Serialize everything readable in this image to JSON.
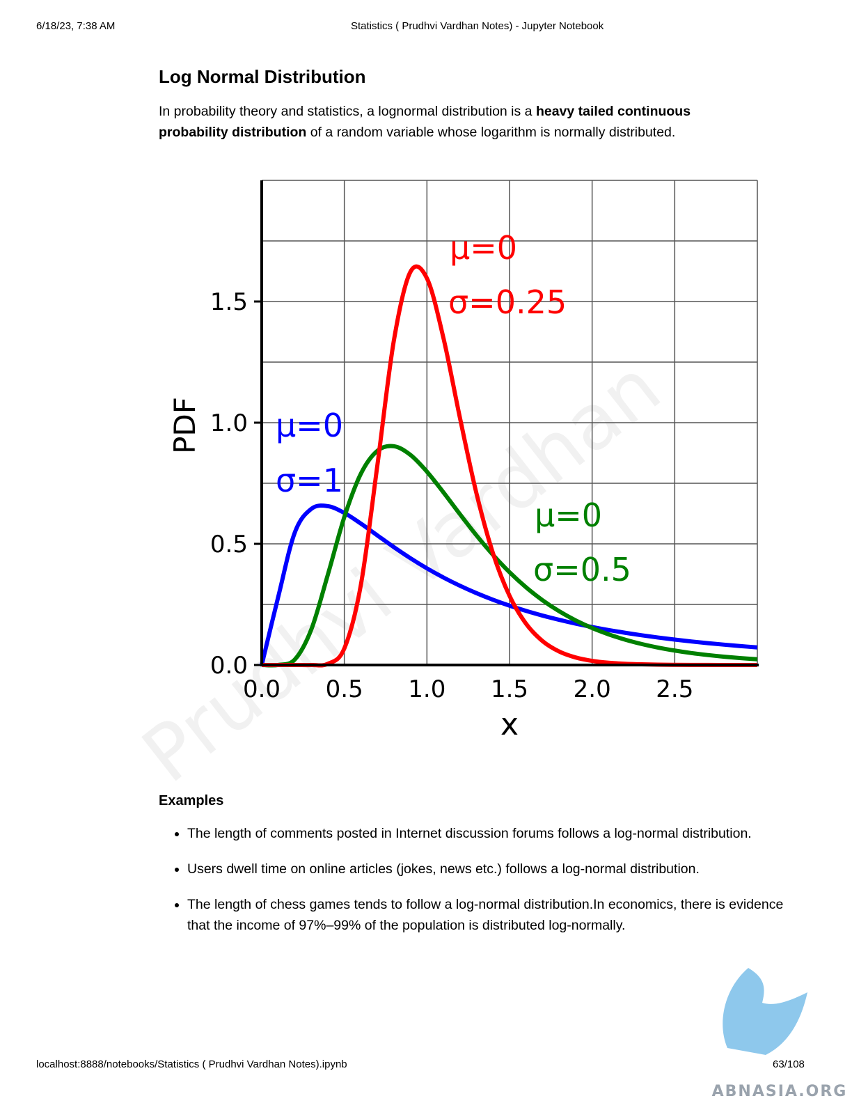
{
  "header": {
    "datetime": "6/18/23, 7:38 AM",
    "title": "Statistics ( Prudhvi Vardhan Notes) - Jupyter Notebook"
  },
  "heading": "Log Normal Distribution",
  "intro": [
    {
      "text": "In probability theory and statistics, a lognormal distribution is a "
    },
    {
      "text": "heavy tailed continuous probability distribution",
      "bold": true
    },
    {
      "text": " of a random variable whose logarithm is normally distributed."
    }
  ],
  "chart_data": {
    "type": "line",
    "xlabel": "x",
    "ylabel": "PDF",
    "x": [
      0,
      0.1,
      0.2,
      0.3,
      0.4,
      0.5,
      0.6,
      0.7,
      0.8,
      0.9,
      1,
      1.1,
      1.2,
      1.3,
      1.4,
      1.5,
      1.6,
      1.7,
      1.8,
      1.9,
      2,
      2.1,
      2.2,
      2.3,
      2.4,
      2.5,
      2.6,
      2.7,
      2.8,
      2.9,
      3
    ],
    "series": [
      {
        "color": "#0000ff",
        "values": [
          0,
          0.2816,
          0.5463,
          0.6442,
          0.6555,
          0.6275,
          0.5836,
          0.5348,
          0.4864,
          0.4408,
          0.3989,
          0.361,
          0.327,
          0.2965,
          0.2693,
          0.245,
          0.2233,
          0.2039,
          0.1865,
          0.1709,
          0.1569,
          0.1443,
          0.1329,
          0.1226,
          0.1133,
          0.1049,
          0.0972,
          0.0902,
          0.0839,
          0.078,
          0.0727
        ]
      },
      {
        "color": "#008000",
        "values": [
          0,
          0.0002,
          0.0225,
          0.1465,
          0.3722,
          0.6104,
          0.7892,
          0.8838,
          0.9028,
          0.867,
          0.7979,
          0.7123,
          0.6222,
          0.5348,
          0.4544,
          0.3829,
          0.3206,
          0.2672,
          0.2221,
          0.1842,
          0.1526,
          0.1264,
          0.1046,
          0.0866,
          0.0718,
          0.0596,
          0.0494,
          0.0411,
          0.0342,
          0.0285,
          0.0238
        ]
      },
      {
        "color": "#ff0000",
        "values": [
          0,
          0,
          0,
          0,
          0.0048,
          0.0683,
          0.3301,
          0.8239,
          1.3393,
          1.6224,
          1.5958,
          1.3492,
          1.0193,
          0.7077,
          0.4608,
          0.2855,
          0.1704,
          0.0987,
          0.0559,
          0.0311,
          0.0171,
          0.0093,
          0.005,
          0.0027,
          0.0014,
          0.0008,
          0.0004,
          0.0002,
          0.0001,
          0.0001,
          0
        ]
      }
    ],
    "annotations": [
      {
        "text": "μ=0",
        "color": "#ff0000"
      },
      {
        "text": "σ=0.25",
        "color": "#ff0000"
      },
      {
        "text": "μ=0",
        "color": "#0000ff"
      },
      {
        "text": "σ=1",
        "color": "#0000ff"
      },
      {
        "text": "μ=0",
        "color": "#008000"
      },
      {
        "text": "σ=0.5",
        "color": "#008000"
      }
    ],
    "xlim": [
      0,
      3
    ],
    "ylim": [
      0,
      2
    ],
    "xticks": [
      {
        "value": 0,
        "label": "0.0"
      },
      0.5,
      {
        "value": 1,
        "label": "1.0"
      },
      1.5,
      {
        "value": 2,
        "label": "2.0"
      },
      2.5
    ],
    "yticks": [
      {
        "value": 0,
        "label": "0.0"
      },
      0.5,
      {
        "value": 1,
        "label": "1.0"
      },
      1.5
    ],
    "yminor": [
      0.25,
      0.75,
      1.25,
      1.75
    ],
    "grid": true
  },
  "examples": {
    "heading": "Examples",
    "items": [
      "The length of comments posted in Internet discussion forums follows a log-normal distribution.",
      "Users dwell time on online articles (jokes, news etc.) follows a log-normal distribution.",
      "The length of chess games tends to follow a log-normal distribution.In economics, there is evidence that the income of 97%–99% of the population is distributed log-normally."
    ]
  },
  "footer": {
    "url": "localhost:8888/notebooks/Statistics ( Prudhvi Vardhan Notes).ipynb",
    "page": "63/108"
  },
  "watermark": "Prudhvi Vardhan",
  "logo": "ABNASIA.ORG"
}
